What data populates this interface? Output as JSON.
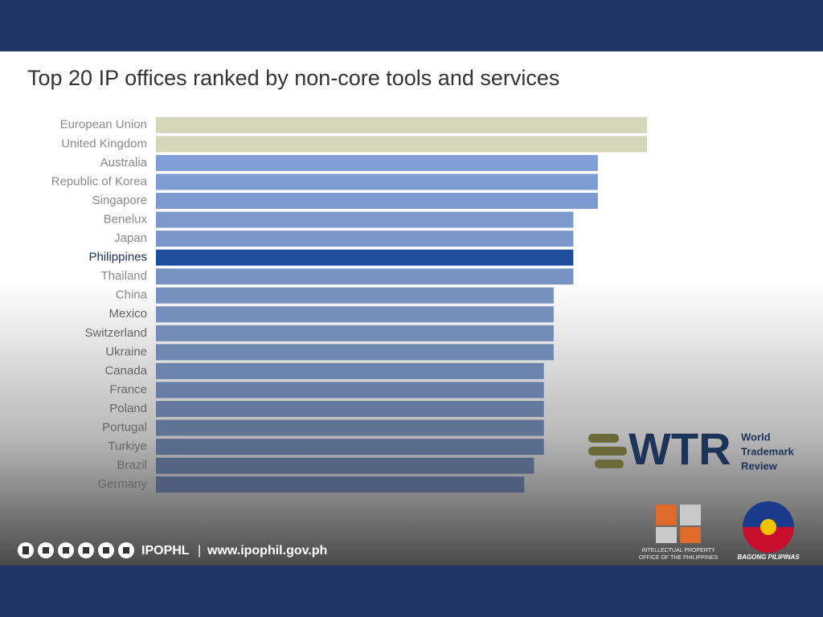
{
  "chart_data": {
    "type": "hbar",
    "title": "Top 20 IP offices ranked by non-core tools and services",
    "categories": [
      "European Union",
      "United Kingdom",
      "Australia",
      "Republic of Korea",
      "Singapore",
      "Benelux",
      "Japan",
      "Philippines",
      "Thailand",
      "China",
      "Mexico",
      "Switzerland",
      "Ukraine",
      "Canada",
      "France",
      "Poland",
      "Portugal",
      "Turkiye",
      "Brazil",
      "Germany"
    ],
    "values": [
      100,
      100,
      90,
      90,
      90,
      85,
      85,
      85,
      85,
      81,
      81,
      81,
      81,
      79,
      79,
      79,
      79,
      79,
      77,
      75
    ],
    "colors": [
      "#d4d7ba",
      "#d4d7ba",
      "#809fd6",
      "#7f9dd3",
      "#7e9bd0",
      "#7d99cc",
      "#7b97c9",
      "#1f4e9c",
      "#7893c2",
      "#7791be",
      "#758ebb",
      "#738bb6",
      "#7088b1",
      "#6c83ab",
      "#687ea4",
      "#64799d",
      "#5f7395",
      "#5a6c8c",
      "#546583",
      "#4e5e7b"
    ],
    "xlim": [
      0,
      100
    ]
  },
  "footer": {
    "brand": "IPOPHL",
    "separator": "|",
    "url": "www.ipophil.gov.ph"
  },
  "logos": {
    "wtr": "WTR",
    "wtr_name": [
      "World",
      "Trademark",
      "Review"
    ],
    "ipophil": [
      "INTELLECTUAL PROPERTY",
      "OFFICE OF THE PHILIPPINES"
    ],
    "bagong": "BAGONG PILIPINAS"
  }
}
